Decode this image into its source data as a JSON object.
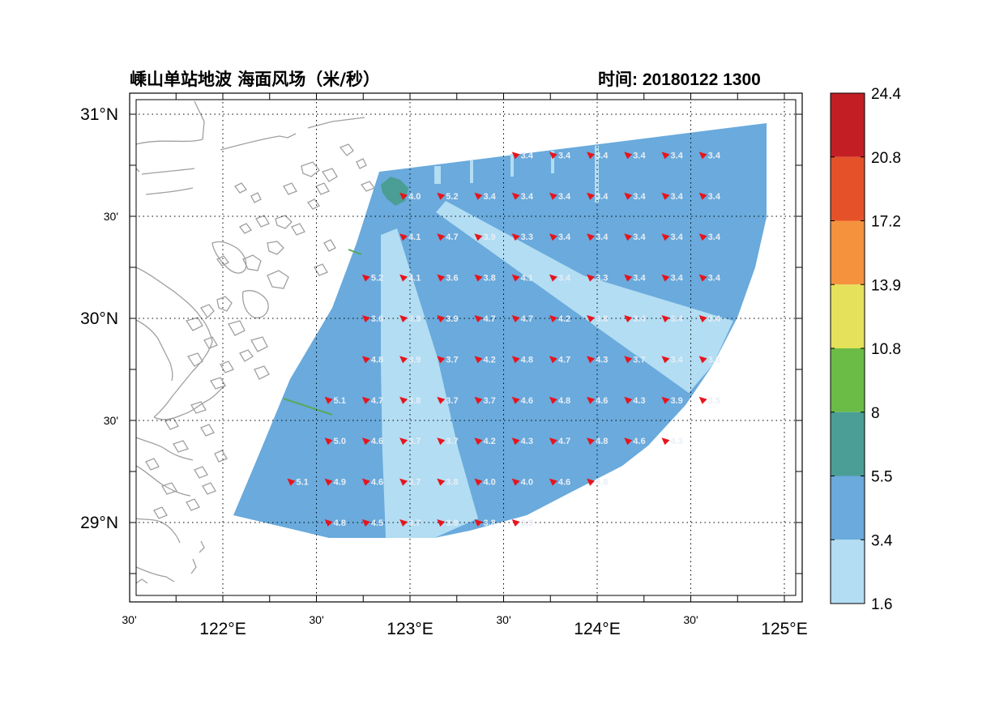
{
  "title": "嵊山单站地波 海面风场（米/秒）",
  "time_label": "时间: 20180122 1300",
  "axes": {
    "x_ticks": [
      {
        "lon": 121.5,
        "label": "30'",
        "major": false
      },
      {
        "lon": 122.0,
        "label": "122°E",
        "major": true
      },
      {
        "lon": 122.5,
        "label": "30'",
        "major": false
      },
      {
        "lon": 123.0,
        "label": "123°E",
        "major": true
      },
      {
        "lon": 123.5,
        "label": "30'",
        "major": false
      },
      {
        "lon": 124.0,
        "label": "124°E",
        "major": true
      },
      {
        "lon": 124.5,
        "label": "30'",
        "major": false
      },
      {
        "lon": 125.0,
        "label": "125°E",
        "major": true
      }
    ],
    "y_ticks": [
      {
        "lat": 31.0,
        "label": "31°N",
        "major": true
      },
      {
        "lat": 30.5,
        "label": "30'",
        "major": false
      },
      {
        "lat": 30.0,
        "label": "30°N",
        "major": true
      },
      {
        "lat": 29.5,
        "label": "30'",
        "major": false
      },
      {
        "lat": 29.0,
        "label": "29°N",
        "major": true
      }
    ]
  },
  "colorbar": {
    "levels": [
      "24.4",
      "20.8",
      "17.2",
      "13.9",
      "10.8",
      "8",
      "5.5",
      "3.4",
      "1.6"
    ],
    "colors": [
      "#c41e25",
      "#e5522a",
      "#f5923e",
      "#e6e15a",
      "#6bbb47",
      "#4a9e95",
      "#6aaadc",
      "#b2ddf3"
    ]
  },
  "colors": {
    "field_main": "#6aaadc",
    "field_light": "#b2ddf3",
    "field_teal": "#4a9e95",
    "arrow": "#e8141c",
    "coast": "#a0a0a0",
    "label": "#e8eef6"
  },
  "wind_grid": {
    "lons": [
      122.17,
      122.37,
      122.57,
      122.77,
      122.97,
      123.17,
      123.37,
      123.57,
      123.77,
      123.97,
      124.17,
      124.37,
      124.57
    ],
    "lats": [
      30.8,
      30.6,
      30.4,
      30.2,
      30.0,
      29.8,
      29.6,
      29.4,
      29.2,
      29.0
    ],
    "rows": [
      [
        "",
        "",
        "",
        "",
        "",
        "",
        "",
        "3.4",
        "3.4",
        "3.4",
        "3.4",
        "3.4",
        "3.4"
      ],
      [
        "",
        "",
        "",
        "",
        "4.0",
        "5.2",
        "3.4",
        "3.4",
        "3.4",
        "3.4",
        "3.4",
        "3.4",
        "3.4"
      ],
      [
        "",
        "",
        "",
        "",
        "4.1",
        "4.7",
        "3.9",
        "3.3",
        "3.4",
        "3.4",
        "3.4",
        "3.4",
        "3.4"
      ],
      [
        "",
        "",
        "",
        "5.2",
        "4.1",
        "3.6",
        "3.8",
        "4.1",
        "3.4",
        "3.3",
        "3.4",
        "3.4",
        "3.4"
      ],
      [
        "",
        "",
        "",
        "3.6",
        "3.9",
        "3.9",
        "4.7",
        "4.7",
        "4.2",
        "3.8",
        "3.4",
        "3.4",
        "3.4"
      ],
      [
        "",
        "",
        "",
        "4.8",
        "3.9",
        "3.7",
        "4.2",
        "4.8",
        "4.7",
        "4.3",
        "3.7",
        "3.4",
        "3.3"
      ],
      [
        "",
        "",
        "5.1",
        "4.7",
        "3.8",
        "3.7",
        "3.7",
        "4.6",
        "4.8",
        "4.6",
        "4.3",
        "3.9",
        "3.5"
      ],
      [
        "",
        "",
        "5.0",
        "4.6",
        "3.7",
        "3.7",
        "4.2",
        "4.3",
        "4.7",
        "4.8",
        "4.6",
        "4.3",
        ""
      ],
      [
        "",
        "5.1",
        "4.9",
        "4.6",
        "3.7",
        "3.8",
        "4.0",
        "4.0",
        "4.6",
        "4.8",
        "",
        "",
        ""
      ],
      [
        "",
        "",
        "4.8",
        "4.5",
        "3.7",
        "3.8",
        "3.8",
        "3.9",
        "",
        "",
        "",
        "",
        ""
      ]
    ]
  }
}
